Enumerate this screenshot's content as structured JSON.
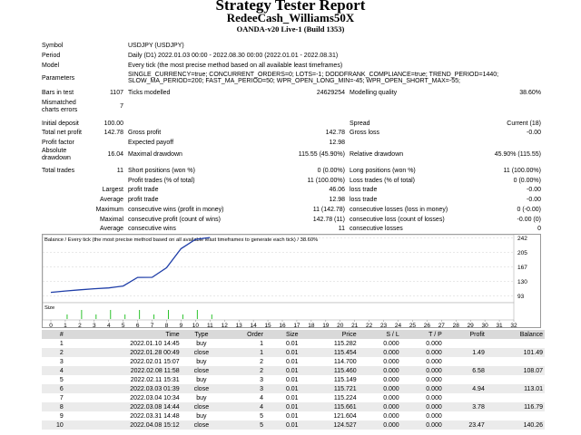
{
  "header": {
    "title": "Strategy Tester Report",
    "expert": "RedeeCash_Williams50X",
    "broker": "OANDA-v20 Live-1 (Build 1353)"
  },
  "settings": {
    "symbol_label": "Symbol",
    "symbol": "USDJPY (USDJPY)",
    "period_label": "Period",
    "period": "Daily (D1) 2022.01.03 00:00 - 2022.08.30 00:00 (2022.01.01 - 2022.08.31)",
    "model_label": "Model",
    "model": "Every tick (the most precise method based on all available least timeframes)",
    "params_label": "Parameters",
    "params_line1": "SINGLE_CURRENCY=true; CONCURRENT_ORDERS=0; LOTS=-1; DODDFRANK_COMPLIANCE=true; TREND_PERIOD=1440;",
    "params_line2": "SLOW_MA_PERIOD=200; FAST_MA_PERIOD=50; WPR_OPEN_LONG_MIN=-45; WPR_OPEN_SHORT_MAX=-55;",
    "bars_label": "Bars in test",
    "bars": "1107",
    "ticks_label": "Ticks modelled",
    "ticks": "24629254",
    "quality_label": "Modelling quality",
    "quality": "38.60%",
    "mismatch_label_1": "Mismatched",
    "mismatch_label_2": "charts errors",
    "mismatch": "7"
  },
  "stats": {
    "initial_deposit_label": "Initial deposit",
    "initial_deposit": "100.00",
    "spread_label": "Spread",
    "spread": "Current (18)",
    "net_profit_label": "Total net profit",
    "net_profit": "142.78",
    "gross_profit_label": "Gross profit",
    "gross_profit": "142.78",
    "gross_loss_label": "Gross loss",
    "gross_loss": "-0.00",
    "profit_factor_label": "Profit factor",
    "expected_payoff_label": "Expected payoff",
    "expected_payoff": "12.98",
    "abs_dd_label_1": "Absolute",
    "abs_dd_label_2": "drawdown",
    "abs_dd": "16.04",
    "max_dd_label": "Maximal drawdown",
    "max_dd": "115.55 (45.90%)",
    "rel_dd_label": "Relative drawdown",
    "rel_dd": "45.90% (115.55)",
    "total_trades_label": "Total trades",
    "total_trades": "11",
    "short_label": "Short positions (won %)",
    "short": "0 (0.00%)",
    "long_label": "Long positions (won %)",
    "long": "11 (100.00%)",
    "profit_trades_label": "Profit trades (% of total)",
    "profit_trades": "11 (100.00%)",
    "loss_trades_label": "Loss trades (% of total)",
    "loss_trades": "0 (0.00%)",
    "largest_label": "Largest",
    "largest_profit_label": "profit trade",
    "largest_profit": "46.06",
    "largest_loss_label": "loss trade",
    "largest_loss": "-0.00",
    "average_label": "Average",
    "avg_profit_label": "profit trade",
    "avg_profit": "12.98",
    "avg_loss_label": "loss trade",
    "avg_loss": "-0.00",
    "maximum_label": "Maximum",
    "max_cons_wins_label": "consecutive wins (profit in money)",
    "max_cons_wins": "11 (142.78)",
    "max_cons_losses_label": "consecutive losses (loss in money)",
    "max_cons_losses": "0 (-0.00)",
    "maximal_label": "Maximal",
    "maximal_cons_profit_label": "consecutive profit (count of wins)",
    "maximal_cons_profit": "142.78 (11)",
    "maximal_cons_loss_label": "consecutive loss (count of losses)",
    "maximal_cons_loss": "-0.00 (0)",
    "avg_cons_label": "Average",
    "avg_cons_wins_label": "consecutive wins",
    "avg_cons_wins": "11",
    "avg_cons_losses_label": "consecutive losses",
    "avg_cons_losses": "0"
  },
  "chart_data": {
    "type": "line",
    "title": "Balance / Every tick (the most precise method based on all available least timeframes to generate each tick) / 38.60%",
    "xlabel": "",
    "ylabel": "",
    "x_ticks": [
      0,
      1,
      2,
      3,
      4,
      5,
      6,
      7,
      8,
      9,
      10,
      11,
      12,
      13,
      14,
      15,
      16,
      17,
      18,
      19,
      20,
      21,
      22,
      23,
      24,
      25,
      26,
      27,
      28,
      29,
      30,
      31,
      32
    ],
    "y_ticks": [
      242,
      205,
      167,
      130,
      93
    ],
    "ylim": [
      75,
      250
    ],
    "series": [
      {
        "values": [
          [
            0,
            101.49
          ],
          [
            1,
            105
          ],
          [
            2,
            108.07
          ],
          [
            3,
            111
          ],
          [
            4,
            113.01
          ],
          [
            5,
            118
          ],
          [
            6,
            140
          ],
          [
            7,
            140.26
          ],
          [
            8,
            165
          ],
          [
            9,
            214
          ],
          [
            10,
            238
          ],
          [
            11,
            242.78
          ]
        ]
      }
    ],
    "size_label": "Size",
    "size_bars": [
      1,
      2,
      3,
      4,
      5,
      6,
      7,
      8,
      9,
      10,
      11
    ],
    "line_color": "#1f3ea8",
    "size_color": "#2cc22c"
  },
  "trades": {
    "headers": [
      "#",
      "Time",
      "Type",
      "Order",
      "Size",
      "Price",
      "S / L",
      "T / P",
      "Profit",
      "Balance"
    ],
    "rows": [
      [
        "1",
        "2022.01.10 14:45",
        "buy",
        "1",
        "0.01",
        "115.282",
        "0.000",
        "0.000",
        "",
        ""
      ],
      [
        "2",
        "2022.01.28 00:49",
        "close",
        "1",
        "0.01",
        "115.454",
        "0.000",
        "0.000",
        "1.49",
        "101.49"
      ],
      [
        "3",
        "2022.02.01 15:07",
        "buy",
        "2",
        "0.01",
        "114.700",
        "0.000",
        "0.000",
        "",
        ""
      ],
      [
        "4",
        "2022.02.08 11:58",
        "close",
        "2",
        "0.01",
        "115.460",
        "0.000",
        "0.000",
        "6.58",
        "108.07"
      ],
      [
        "5",
        "2022.02.11 15:31",
        "buy",
        "3",
        "0.01",
        "115.149",
        "0.000",
        "0.000",
        "",
        ""
      ],
      [
        "6",
        "2022.03.03 01:39",
        "close",
        "3",
        "0.01",
        "115.721",
        "0.000",
        "0.000",
        "4.94",
        "113.01"
      ],
      [
        "7",
        "2022.03.04 10:34",
        "buy",
        "4",
        "0.01",
        "115.224",
        "0.000",
        "0.000",
        "",
        ""
      ],
      [
        "8",
        "2022.03.08 14:44",
        "close",
        "4",
        "0.01",
        "115.661",
        "0.000",
        "0.000",
        "3.78",
        "116.79"
      ],
      [
        "9",
        "2022.03.31 14:48",
        "buy",
        "5",
        "0.01",
        "121.604",
        "0.000",
        "0.000",
        "",
        ""
      ],
      [
        "10",
        "2022.04.08 15:12",
        "close",
        "5",
        "0.01",
        "124.527",
        "0.000",
        "0.000",
        "23.47",
        "140.26"
      ]
    ]
  }
}
